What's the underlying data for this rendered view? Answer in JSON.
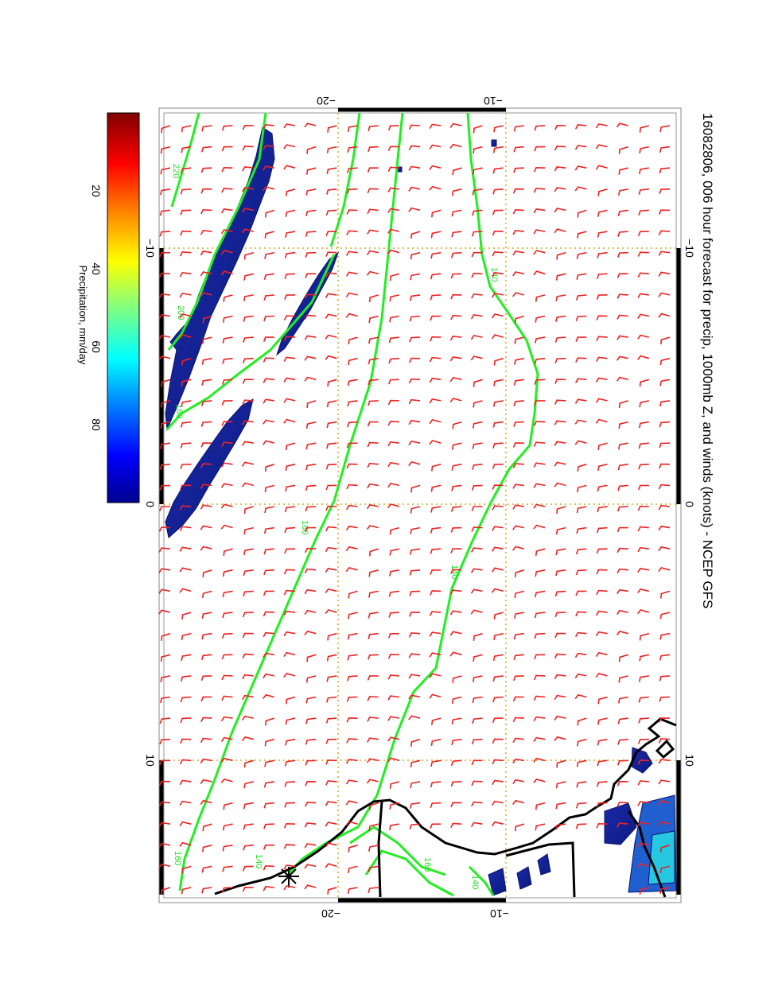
{
  "title": "16082806, 006 hour forecast for precip, 1000mb Z, and winds (knots) - NCEP GFS",
  "colors": {
    "barb": "#ee2222",
    "contour": "#22ee22",
    "coast": "#000000",
    "grid": "#d4aa22",
    "frame": "#000000",
    "precip_low": "#14208c"
  },
  "axes": {
    "top_ticks": [
      "−20",
      "−10"
    ],
    "bottom_ticks": [
      "−20",
      "−10"
    ],
    "left_ticks": [
      "−10",
      "0",
      "10"
    ],
    "right_ticks": [
      "−10",
      "0",
      "10"
    ]
  },
  "colorbar": {
    "label": "Precipitation, mm/day",
    "ticks": [
      "20",
      "40",
      "60",
      "80"
    ],
    "tick_values": [
      20,
      40,
      60,
      80
    ],
    "range": [
      0,
      100
    ],
    "colormap": "jet"
  },
  "contours": {
    "labels": [
      "140",
      "160",
      "220",
      "200",
      "180",
      "160",
      "140",
      "160",
      "140",
      "140"
    ]
  }
}
